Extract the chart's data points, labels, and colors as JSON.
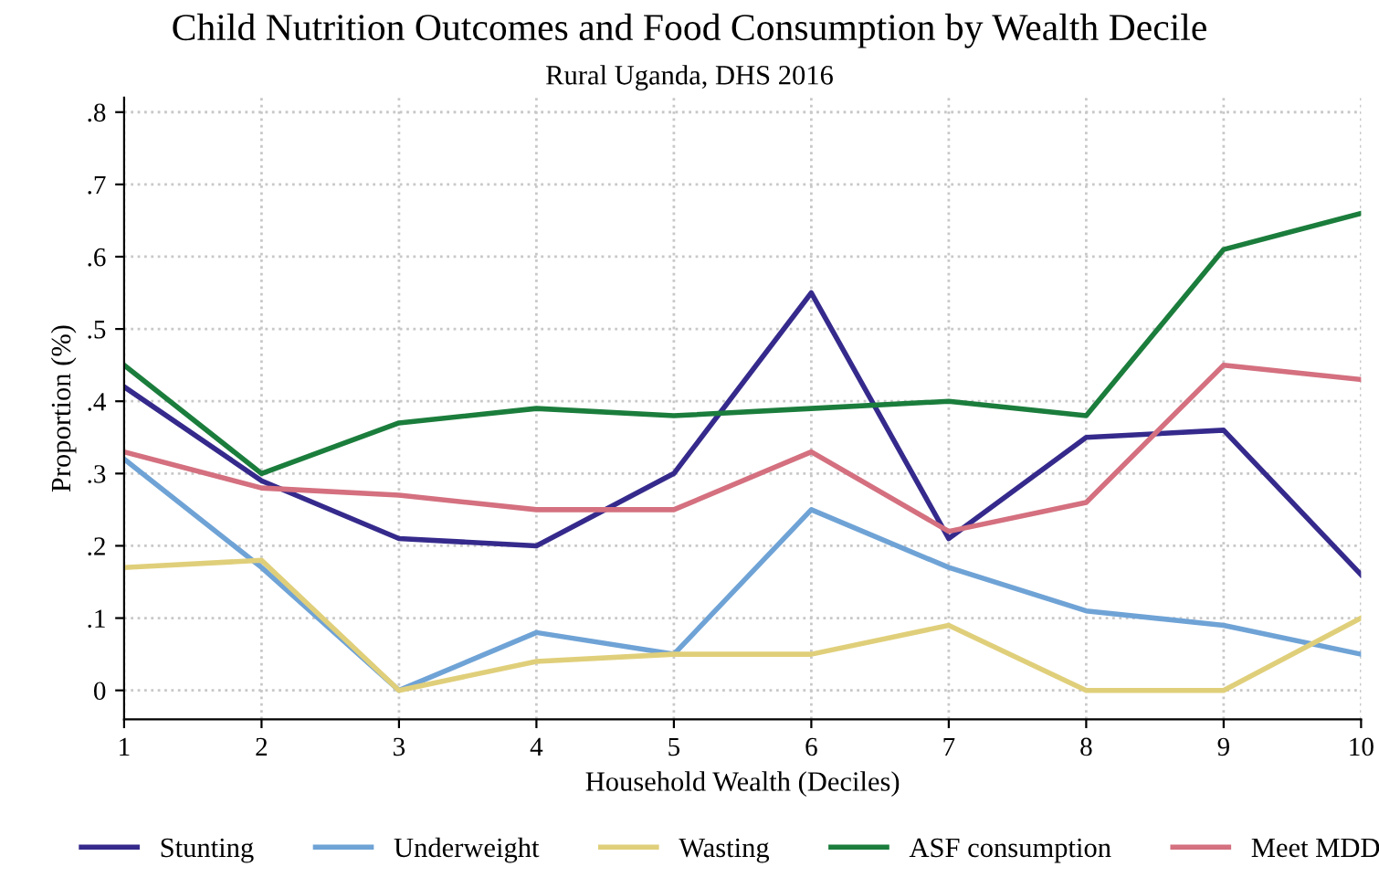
{
  "chart_data": {
    "type": "line",
    "title": "Child Nutrition Outcomes and Food Consumption by Wealth Decile",
    "subtitle": "Rural Uganda, DHS 2016",
    "xlabel": "Household Wealth (Deciles)",
    "ylabel": "Proportion (%)",
    "x": [
      1,
      2,
      3,
      4,
      5,
      6,
      7,
      8,
      9,
      10
    ],
    "series": [
      {
        "name": "Stunting",
        "color": "#352a8c",
        "values": [
          0.42,
          0.29,
          0.21,
          0.2,
          0.3,
          0.55,
          0.21,
          0.35,
          0.36,
          0.16
        ]
      },
      {
        "name": "Underweight",
        "color": "#6fa3d6",
        "values": [
          0.32,
          0.17,
          0.0,
          0.08,
          0.05,
          0.25,
          0.17,
          0.11,
          0.09,
          0.05
        ]
      },
      {
        "name": "Wasting",
        "color": "#e0cf7a",
        "values": [
          0.17,
          0.18,
          0.0,
          0.04,
          0.05,
          0.05,
          0.09,
          0.0,
          0.0,
          0.1
        ]
      },
      {
        "name": "ASF consumption",
        "color": "#1b7d3c",
        "values": [
          0.45,
          0.3,
          0.37,
          0.39,
          0.38,
          0.39,
          0.4,
          0.38,
          0.61,
          0.66
        ]
      },
      {
        "name": "Meet MDD",
        "color": "#d4707f",
        "values": [
          0.33,
          0.28,
          0.27,
          0.25,
          0.25,
          0.33,
          0.22,
          0.26,
          0.45,
          0.43
        ]
      }
    ],
    "xlim": [
      1,
      10
    ],
    "xticks": [
      1,
      2,
      3,
      4,
      5,
      6,
      7,
      8,
      9,
      10
    ],
    "ylim": [
      -0.04,
      0.82
    ],
    "yticks": [
      {
        "value": 0,
        "label": "0"
      },
      {
        "value": 0.1,
        "label": ".1"
      },
      {
        "value": 0.2,
        "label": ".2"
      },
      {
        "value": 0.3,
        "label": ".3"
      },
      {
        "value": 0.4,
        "label": ".4"
      },
      {
        "value": 0.5,
        "label": ".5"
      },
      {
        "value": 0.6,
        "label": ".6"
      },
      {
        "value": 0.7,
        "label": ".7"
      },
      {
        "value": 0.8,
        "label": ".8"
      }
    ],
    "grid": true,
    "legend": "bottom",
    "marker": "none",
    "line_style": "solid"
  }
}
